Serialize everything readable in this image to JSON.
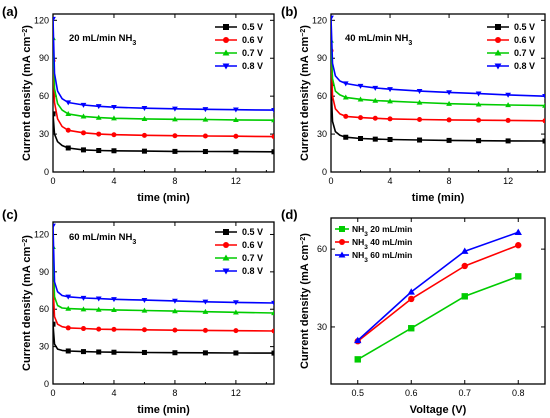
{
  "chart_data": [
    {
      "panel": "(a)",
      "type": "line",
      "annotation": "20 mL/min NH",
      "annotation_sub": "3",
      "xlabel": "time (min)",
      "ylabel": "Current density (mA cm",
      "ylabel_sup": "−2",
      "ylabel_close": ")",
      "xlim": [
        0,
        14.5
      ],
      "ylim": [
        0,
        125
      ],
      "xticks": [
        0,
        4,
        8,
        12
      ],
      "yticks": [
        0,
        30,
        60,
        90,
        120
      ],
      "legend_position": "top-right",
      "series": [
        {
          "name": "0.5 V",
          "color": "#000000",
          "marker": "square",
          "spike": 46,
          "plateau": 16,
          "x": [
            0,
            0.1,
            0.3,
            0.6,
            1,
            2,
            3,
            4,
            6,
            8,
            10,
            12,
            14.5
          ],
          "y": [
            46,
            30,
            24,
            21,
            19,
            17.5,
            17,
            16.8,
            16.5,
            16.3,
            16.2,
            16.1,
            16
          ]
        },
        {
          "name": "0.6 V",
          "color": "#ff0000",
          "marker": "circle",
          "spike": 88,
          "plateau": 28,
          "x": [
            0,
            0.1,
            0.3,
            0.6,
            1,
            2,
            3,
            4,
            6,
            8,
            10,
            12,
            14.5
          ],
          "y": [
            88,
            55,
            42,
            36,
            33,
            31,
            30,
            29.5,
            29,
            28.7,
            28.5,
            28.3,
            28
          ]
        },
        {
          "name": "0.7 V",
          "color": "#00cc00",
          "marker": "triangle-up",
          "spike": 106,
          "plateau": 41,
          "x": [
            0,
            0.1,
            0.3,
            0.6,
            1,
            2,
            3,
            4,
            6,
            8,
            10,
            12,
            14.5
          ],
          "y": [
            106,
            66,
            54,
            49,
            46,
            44,
            43,
            42.5,
            42,
            41.7,
            41.5,
            41.2,
            41
          ]
        },
        {
          "name": "0.8 V",
          "color": "#0000ff",
          "marker": "triangle-down",
          "spike": 121,
          "plateau": 49,
          "x": [
            0,
            0.1,
            0.3,
            0.6,
            1,
            2,
            3,
            4,
            6,
            8,
            10,
            12,
            14.5
          ],
          "y": [
            121,
            78,
            64,
            58,
            55,
            53,
            52,
            51.3,
            50.5,
            50,
            49.6,
            49.3,
            49
          ]
        }
      ]
    },
    {
      "panel": "(b)",
      "type": "line",
      "annotation": "40 mL/min NH",
      "annotation_sub": "3",
      "xlabel": "time (min)",
      "ylabel": "Current density (mA cm",
      "ylabel_sup": "−2",
      "ylabel_close": ")",
      "xlim": [
        0,
        14.5
      ],
      "ylim": [
        0,
        125
      ],
      "xticks": [
        0,
        4,
        8,
        12
      ],
      "yticks": [
        0,
        30,
        60,
        90,
        120
      ],
      "legend_position": "top-right",
      "series": [
        {
          "name": "0.5 V",
          "color": "#000000",
          "marker": "square",
          "x": [
            0,
            0.1,
            0.3,
            0.6,
            1,
            2,
            3,
            4,
            6,
            8,
            10,
            12,
            14.5
          ],
          "y": [
            70,
            40,
            32,
            29,
            27.5,
            26.5,
            26,
            25.7,
            25.3,
            25,
            24.8,
            24.6,
            24.5
          ]
        },
        {
          "name": "0.6 V",
          "color": "#ff0000",
          "marker": "circle",
          "x": [
            0,
            0.1,
            0.3,
            0.6,
            1,
            2,
            3,
            4,
            6,
            8,
            10,
            12,
            14.5
          ],
          "y": [
            96,
            60,
            50,
            46,
            44,
            43,
            42.5,
            42,
            41.5,
            41.2,
            41,
            40.8,
            40.5
          ]
        },
        {
          "name": "0.7 V",
          "color": "#00cc00",
          "marker": "triangle-up",
          "x": [
            0,
            0.1,
            0.3,
            0.6,
            1,
            2,
            3,
            4,
            6,
            8,
            10,
            12,
            14.5
          ],
          "y": [
            104,
            74,
            64,
            61,
            59,
            57.5,
            56.5,
            56,
            55,
            54,
            53.5,
            53,
            52.5
          ]
        },
        {
          "name": "0.8 V",
          "color": "#0000ff",
          "marker": "triangle-down",
          "x": [
            0,
            0.1,
            0.3,
            0.6,
            1,
            2,
            3,
            4,
            6,
            8,
            10,
            12,
            14.5
          ],
          "y": [
            122,
            86,
            76,
            72,
            70,
            68,
            66.5,
            65.5,
            64,
            63,
            62,
            61,
            60
          ]
        }
      ]
    },
    {
      "panel": "(c)",
      "type": "line",
      "annotation": "60 mL/min NH",
      "annotation_sub": "3",
      "xlabel": "time (min)",
      "ylabel": "Current density (mA cm",
      "ylabel_sup": "−2",
      "ylabel_close": ")",
      "xlim": [
        0,
        14.5
      ],
      "ylim": [
        0,
        130
      ],
      "xticks": [
        0,
        4,
        8,
        12
      ],
      "yticks": [
        0,
        30,
        60,
        90,
        120
      ],
      "legend_position": "top-right",
      "series": [
        {
          "name": "0.5 V",
          "color": "#000000",
          "marker": "square",
          "x": [
            0,
            0.1,
            0.3,
            0.6,
            1,
            2,
            3,
            4,
            6,
            8,
            10,
            12,
            14.5
          ],
          "y": [
            48,
            32,
            28,
            27,
            26.5,
            26,
            25.7,
            25.5,
            25.3,
            25.1,
            25,
            24.9,
            24.8
          ]
        },
        {
          "name": "0.6 V",
          "color": "#ff0000",
          "marker": "circle",
          "x": [
            0,
            0.1,
            0.3,
            0.6,
            1,
            2,
            3,
            4,
            6,
            8,
            10,
            12,
            14.5
          ],
          "y": [
            80,
            54,
            48,
            46,
            45,
            44.5,
            44,
            43.8,
            43.5,
            43.2,
            43,
            42.8,
            42.5
          ]
        },
        {
          "name": "0.7 V",
          "color": "#00cc00",
          "marker": "triangle-up",
          "x": [
            0,
            0.1,
            0.3,
            0.6,
            1,
            2,
            3,
            4,
            6,
            8,
            10,
            12,
            14.5
          ],
          "y": [
            110,
            70,
            63,
            61,
            60.5,
            60,
            59.7,
            59.5,
            59,
            58.5,
            58,
            57.5,
            57
          ]
        },
        {
          "name": "0.8 V",
          "color": "#0000ff",
          "marker": "triangle-down",
          "x": [
            0,
            0.1,
            0.3,
            0.6,
            1,
            2,
            3,
            4,
            6,
            8,
            10,
            12,
            14.5
          ],
          "y": [
            127,
            82,
            74,
            71,
            70,
            69,
            68.5,
            68,
            67.3,
            66.7,
            66,
            65.5,
            65
          ]
        }
      ]
    },
    {
      "panel": "(d)",
      "type": "line",
      "xlabel": "Voltage (V)",
      "ylabel": "Current density (mA cm",
      "ylabel_sup": "−2",
      "ylabel_close": ")",
      "xlim": [
        0.45,
        0.85
      ],
      "ylim": [
        8,
        72
      ],
      "xticks": [
        0.5,
        0.6,
        0.7,
        0.8
      ],
      "xtick_labels": [
        "0.5",
        "0.6",
        "0.7",
        "0.8"
      ],
      "yticks": [
        30,
        60
      ],
      "legend_position": "top-left",
      "series": [
        {
          "name": "NH",
          "name_sub": "3",
          "name_rest": " 20 mL/min",
          "color": "#00cc00",
          "marker": "square",
          "x": [
            0.5,
            0.6,
            0.7,
            0.8
          ],
          "y": [
            17.5,
            29.5,
            41.8,
            49.5
          ]
        },
        {
          "name": "NH",
          "name_sub": "3",
          "name_rest": " 40 mL/min",
          "color": "#ff0000",
          "marker": "circle",
          "x": [
            0.5,
            0.6,
            0.7,
            0.8
          ],
          "y": [
            24.5,
            40.8,
            53.5,
            61.5
          ]
        },
        {
          "name": "NH",
          "name_sub": "3",
          "name_rest": " 60 mL/min",
          "color": "#0000ff",
          "marker": "triangle-up",
          "x": [
            0.5,
            0.6,
            0.7,
            0.8
          ],
          "y": [
            24.8,
            43.5,
            59.2,
            66.5
          ]
        }
      ]
    }
  ]
}
